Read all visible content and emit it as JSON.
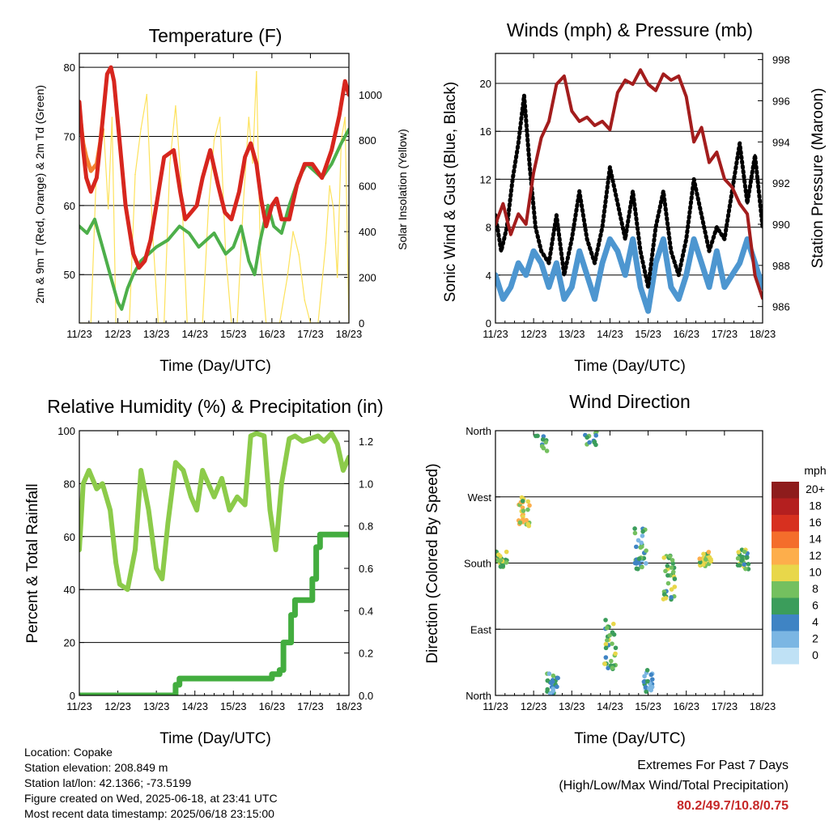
{
  "colors": {
    "temp2m": "#d7261e",
    "temp9m": "#f58231",
    "dewpoint": "#4daf4a",
    "solar": "#fde25c",
    "wind": "#4d96d0",
    "gust": "#000000",
    "pressure": "#a31d1d",
    "rh": "#8ccb4a",
    "precip": "#43ad3f",
    "extremes": "#c62828"
  },
  "day_ticks": [
    "11/23",
    "12/23",
    "13/23",
    "14/23",
    "15/23",
    "16/23",
    "17/23",
    "18/23"
  ],
  "chart_data": [
    {
      "type": "line",
      "title": "Temperature (F)",
      "xlabel": "Time (Day/UTC)",
      "ylabel": "2m & 9m T (Red, Orange) & 2m Td (Green)",
      "y2label": "Solar Insolation (Yellow)",
      "xlim": [
        0,
        7
      ],
      "ylim": [
        43,
        82
      ],
      "y_ticks": [
        50,
        60,
        70,
        80
      ],
      "y2lim": [
        0,
        1180
      ],
      "y2_ticks": [
        0,
        200,
        400,
        600,
        800,
        1000
      ],
      "grid": "horizontal",
      "series": [
        {
          "key": "temp2m",
          "color": "#d7261e",
          "x": [
            0,
            0.1,
            0.18,
            0.3,
            0.45,
            0.6,
            0.72,
            0.82,
            0.9,
            1.0,
            1.2,
            1.4,
            1.55,
            1.7,
            1.85,
            2.0,
            2.2,
            2.45,
            2.62,
            2.75,
            2.9,
            3.05,
            3.2,
            3.4,
            3.6,
            3.78,
            3.95,
            4.15,
            4.3,
            4.45,
            4.6,
            4.72,
            4.85,
            5.0,
            5.12,
            5.25,
            5.45,
            5.65,
            5.85,
            6.05,
            6.3,
            6.55,
            6.75,
            6.9,
            7.0
          ],
          "y": [
            75,
            68,
            64,
            62,
            64,
            72,
            79,
            80,
            78,
            72,
            60,
            53,
            51,
            52,
            55,
            60,
            67,
            68,
            62,
            58,
            59,
            60,
            64,
            68,
            63,
            59,
            58,
            62,
            67,
            69,
            66,
            61,
            57,
            60,
            61,
            58,
            58,
            63,
            66,
            66,
            64,
            68,
            73,
            78,
            76
          ]
        },
        {
          "key": "temp9m",
          "color": "#f58231",
          "x": [
            0,
            0.1,
            0.18,
            0.3,
            0.45,
            0.6
          ],
          "y": [
            74,
            69,
            67,
            65,
            66,
            71
          ]
        },
        {
          "key": "dewpoint",
          "color": "#4daf4a",
          "x": [
            0,
            0.2,
            0.4,
            0.55,
            0.75,
            0.9,
            1.0,
            1.1,
            1.25,
            1.4,
            1.6,
            1.8,
            2.0,
            2.3,
            2.6,
            2.85,
            3.1,
            3.3,
            3.5,
            3.8,
            4.0,
            4.2,
            4.4,
            4.55,
            4.7,
            4.9,
            5.05,
            5.25,
            5.45,
            5.7,
            5.9,
            6.1,
            6.3,
            6.55,
            6.8,
            7.0
          ],
          "y": [
            57,
            56,
            58,
            55,
            51,
            48,
            46,
            45,
            48,
            50,
            52,
            53,
            54,
            55,
            57,
            56,
            54,
            55,
            56,
            53,
            54,
            57,
            52,
            50,
            55,
            60,
            57,
            56,
            60,
            64,
            66,
            65,
            64,
            66,
            69,
            71
          ]
        },
        {
          "key": "solar",
          "color": "#fde25c",
          "x": [
            0,
            0.3,
            0.45,
            0.6,
            0.75,
            0.85,
            0.95,
            1.1,
            1.3,
            1.45,
            1.6,
            1.75,
            1.9,
            2.05,
            2.2,
            2.35,
            2.5,
            2.65,
            2.8,
            3.0,
            3.2,
            3.35,
            3.5,
            3.65,
            3.8,
            3.95,
            4.1,
            4.25,
            4.4,
            4.5,
            4.6,
            4.7,
            4.85,
            5.0,
            5.2,
            5.4,
            5.55,
            5.7,
            5.85,
            6.0,
            6.2,
            6.4,
            6.5,
            6.6,
            6.7,
            6.8,
            6.9,
            7.0
          ],
          "y": [
            0,
            0,
            700,
            950,
            500,
            900,
            0,
            0,
            0,
            650,
            850,
            1000,
            400,
            0,
            0,
            700,
            950,
            600,
            0,
            0,
            0,
            500,
            800,
            900,
            300,
            0,
            0,
            500,
            900,
            700,
            1100,
            300,
            0,
            0,
            0,
            200,
            400,
            300,
            100,
            0,
            0,
            350,
            600,
            500,
            200,
            800,
            900,
            0
          ]
        }
      ]
    },
    {
      "type": "line",
      "title": "Winds (mph) & Pressure (mb)",
      "xlabel": "Time (Day/UTC)",
      "ylabel": "Sonic Wind & Gust (Blue, Black)",
      "y2label": "Station Pressure (Maroon)",
      "xlim": [
        0,
        7
      ],
      "ylim": [
        0,
        22.5
      ],
      "y_ticks": [
        0,
        4,
        8,
        12,
        16,
        20
      ],
      "y2lim": [
        985.2,
        998.3
      ],
      "y2_ticks": [
        986,
        988,
        990,
        992,
        994,
        996,
        998
      ],
      "grid": "horizontal",
      "series": [
        {
          "key": "wind",
          "color": "#4d96d0",
          "x": [
            0,
            0.2,
            0.4,
            0.6,
            0.8,
            1.0,
            1.2,
            1.4,
            1.6,
            1.8,
            2.0,
            2.2,
            2.4,
            2.6,
            2.8,
            3.0,
            3.2,
            3.4,
            3.6,
            3.8,
            4.0,
            4.2,
            4.4,
            4.6,
            4.8,
            5.0,
            5.2,
            5.4,
            5.6,
            5.8,
            6.0,
            6.2,
            6.4,
            6.6,
            6.8,
            7.0
          ],
          "y": [
            4,
            2,
            3,
            5,
            4,
            6,
            5,
            3,
            5,
            2,
            3,
            6,
            4,
            2,
            5,
            7,
            6,
            4,
            7,
            3,
            1,
            5,
            7,
            3,
            2,
            4,
            7,
            5,
            3,
            6,
            3,
            4,
            5,
            7,
            5,
            3
          ]
        },
        {
          "key": "gust",
          "color": "#000000",
          "x": [
            0,
            0.15,
            0.3,
            0.45,
            0.6,
            0.75,
            0.9,
            1.05,
            1.2,
            1.4,
            1.6,
            1.8,
            2.0,
            2.2,
            2.4,
            2.6,
            2.8,
            3.0,
            3.2,
            3.4,
            3.6,
            3.8,
            4.0,
            4.2,
            4.4,
            4.6,
            4.8,
            5.0,
            5.2,
            5.4,
            5.6,
            5.8,
            6.0,
            6.2,
            6.4,
            6.6,
            6.8,
            7.0
          ],
          "y": [
            9,
            6,
            8,
            12,
            15,
            19,
            13,
            8,
            6,
            5,
            9,
            4,
            7,
            11,
            7,
            5,
            8,
            13,
            10,
            7,
            11,
            6,
            3,
            8,
            11,
            6,
            4,
            7,
            12,
            9,
            6,
            8,
            7,
            11,
            15,
            10,
            14,
            8
          ]
        },
        {
          "key": "pressure",
          "color": "#a31d1d",
          "x": [
            0,
            0.2,
            0.4,
            0.6,
            0.8,
            1.0,
            1.2,
            1.4,
            1.6,
            1.8,
            2.0,
            2.2,
            2.4,
            2.6,
            2.8,
            3.0,
            3.2,
            3.4,
            3.6,
            3.8,
            4.0,
            4.2,
            4.4,
            4.6,
            4.8,
            5.0,
            5.2,
            5.4,
            5.6,
            5.8,
            6.0,
            6.2,
            6.4,
            6.6,
            6.8,
            7.0
          ],
          "y": [
            990,
            991,
            989.5,
            990.5,
            990,
            992.5,
            994.2,
            995,
            996.8,
            997.2,
            995.5,
            995,
            995.2,
            994.8,
            995,
            994.6,
            996.4,
            997,
            996.8,
            997.5,
            996.8,
            996.5,
            997.3,
            997,
            997.2,
            996.2,
            994,
            994.7,
            993,
            993.5,
            992.2,
            991.8,
            991,
            990.5,
            987.5,
            986.4
          ]
        }
      ]
    },
    {
      "type": "line",
      "title": "Relative Humidity (%) & Precipitation (in)",
      "xlabel": "Time (Day/UTC)",
      "ylabel": "Percent & Total Rainfall",
      "xlim": [
        0,
        7
      ],
      "ylim": [
        0,
        100
      ],
      "y_ticks": [
        0,
        20,
        40,
        60,
        80,
        100
      ],
      "y2lim": [
        0,
        1.25
      ],
      "y2_ticks": [
        0.0,
        0.2,
        0.4,
        0.6,
        0.8,
        1.0,
        1.2
      ],
      "grid": "horizontal",
      "series": [
        {
          "key": "rh",
          "color": "#8ccb4a",
          "x": [
            0,
            0.1,
            0.25,
            0.45,
            0.6,
            0.8,
            0.95,
            1.05,
            1.25,
            1.45,
            1.6,
            1.8,
            2.0,
            2.15,
            2.3,
            2.5,
            2.7,
            2.9,
            3.05,
            3.2,
            3.35,
            3.5,
            3.7,
            3.9,
            4.1,
            4.3,
            4.45,
            4.6,
            4.8,
            4.95,
            5.1,
            5.25,
            5.45,
            5.6,
            5.8,
            6.0,
            6.2,
            6.35,
            6.55,
            6.7,
            6.85,
            7.0
          ],
          "y": [
            55,
            80,
            85,
            78,
            80,
            70,
            50,
            42,
            40,
            55,
            85,
            70,
            48,
            44,
            65,
            88,
            85,
            75,
            70,
            85,
            80,
            75,
            82,
            70,
            75,
            72,
            98,
            99,
            98,
            70,
            55,
            80,
            97,
            98,
            96,
            97,
            98,
            96,
            99,
            95,
            85,
            90
          ]
        },
        {
          "key": "precip",
          "axis": "y2",
          "color": "#43ad3f",
          "x": [
            0,
            2.3,
            2.5,
            2.6,
            2.7,
            4.9,
            5.0,
            5.2,
            5.3,
            5.5,
            5.6,
            6.0,
            6.05,
            6.15,
            6.25,
            7.0
          ],
          "y": [
            0,
            0,
            0.05,
            0.08,
            0.08,
            0.08,
            0.1,
            0.12,
            0.25,
            0.38,
            0.45,
            0.45,
            0.55,
            0.7,
            0.76,
            0.76
          ]
        }
      ]
    },
    {
      "type": "scatter",
      "title": "Wind Direction",
      "xlabel": "Time (Day/UTC)",
      "ylabel": "Direction (Colored By Speed)",
      "xlim": [
        0,
        7
      ],
      "ylim": [
        0,
        360
      ],
      "y_ticks": [
        "North",
        "East",
        "South",
        "West",
        "North"
      ],
      "y_tick_values": [
        0,
        90,
        180,
        270,
        360
      ],
      "grid": "horizontal",
      "colorbar": {
        "title": "mph",
        "labels": [
          "20+",
          "18",
          "16",
          "14",
          "12",
          "10",
          "8",
          "6",
          "4",
          "2",
          "0"
        ],
        "colors": [
          "#8e1c1c",
          "#b41f1f",
          "#d7301f",
          "#f46d2b",
          "#fdae4b",
          "#e8d74a",
          "#74c05f",
          "#3b9d5b",
          "#3f84c4",
          "#7bb6e3",
          "#bfe1f5"
        ]
      },
      "clusters": [
        {
          "x": 0.15,
          "dir": 185,
          "spread": 12,
          "speed": 8,
          "n": 26
        },
        {
          "x": 0.75,
          "dir": 250,
          "spread": 20,
          "speed": 9,
          "n": 26
        },
        {
          "x": 1.2,
          "dir": 345,
          "spread": 14,
          "speed": 6,
          "n": 10
        },
        {
          "x": 2.5,
          "dir": 350,
          "spread": 10,
          "speed": 5,
          "n": 12
        },
        {
          "x": 3.0,
          "dir": 70,
          "spread": 35,
          "speed": 6,
          "n": 30
        },
        {
          "x": 3.8,
          "dir": 200,
          "spread": 30,
          "speed": 5,
          "n": 30
        },
        {
          "x": 4.55,
          "dir": 160,
          "spread": 30,
          "speed": 6,
          "n": 30
        },
        {
          "x": 5.5,
          "dir": 185,
          "spread": 10,
          "speed": 8,
          "n": 35
        },
        {
          "x": 1.5,
          "dir": 15,
          "spread": 15,
          "speed": 4,
          "n": 25
        },
        {
          "x": 4.0,
          "dir": 20,
          "spread": 15,
          "speed": 3,
          "n": 25
        },
        {
          "x": 6.5,
          "dir": 185,
          "spread": 14,
          "speed": 7,
          "n": 25
        }
      ]
    }
  ],
  "footer": {
    "location": "Location: Copake",
    "elevation": "Station elevation: 208.849 m",
    "latlon": "Station lat/lon: 42.1366; -73.5199",
    "created": "Figure created on Wed, 2025-06-18, at 23:41 UTC",
    "latest": "Most recent data timestamp: 2025/06/18 23:15:00"
  },
  "extremes": {
    "heading": "Extremes For Past 7 Days",
    "subheading": "(High/Low/Max Wind/Total Precipitation)",
    "values": "80.2/49.7/10.8/0.75"
  }
}
